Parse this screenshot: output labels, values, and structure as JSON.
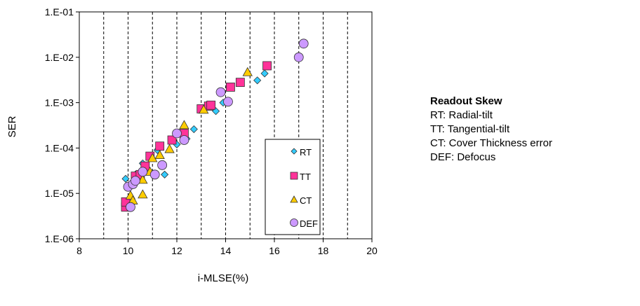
{
  "chart_data": {
    "type": "scatter",
    "xlabel": "i-MLSE(%)",
    "ylabel": "SER",
    "xlim": [
      8,
      20
    ],
    "ylim": [
      1e-06,
      0.1
    ],
    "y_scale": "log",
    "x_ticks": [
      "8",
      "10",
      "12",
      "14",
      "16",
      "18",
      "20"
    ],
    "y_ticks": [
      "1.E-06",
      "1.E-05",
      "1.E-04",
      "1.E-03",
      "1.E-02",
      "1.E-01"
    ],
    "grid": "vertical dashed",
    "legend_position": "bottom-right inside",
    "series": [
      {
        "name": "RT",
        "marker": "diamond",
        "color": "#33CCFF",
        "points": [
          [
            9.9,
            2.1e-05
          ],
          [
            10.3,
            2.6e-05
          ],
          [
            10.6,
            4.6e-05
          ],
          [
            10.9,
            6.3e-05
          ],
          [
            11.2,
            9e-05
          ],
          [
            11.5,
            2.6e-05
          ],
          [
            12.0,
            0.00012
          ],
          [
            12.4,
            0.00016
          ],
          [
            12.7,
            0.00026
          ],
          [
            13.6,
            0.00065
          ],
          [
            13.9,
            0.001
          ],
          [
            15.3,
            0.0031
          ],
          [
            15.6,
            0.0044
          ]
        ]
      },
      {
        "name": "TT",
        "marker": "square",
        "color": "#FF3399",
        "points": [
          [
            9.9,
            5e-06
          ],
          [
            9.9,
            6.5e-06
          ],
          [
            10.3,
            2.4e-05
          ],
          [
            10.5,
            2.6e-05
          ],
          [
            10.7,
            4e-05
          ],
          [
            10.9,
            6.6e-05
          ],
          [
            11.3,
            0.00011
          ],
          [
            11.8,
            0.00015
          ],
          [
            12.3,
            0.00021
          ],
          [
            13.0,
            0.00073
          ],
          [
            13.3,
            0.00084
          ],
          [
            13.4,
            0.00088
          ],
          [
            14.2,
            0.0022
          ],
          [
            14.6,
            0.0028
          ],
          [
            15.7,
            0.0065
          ]
        ]
      },
      {
        "name": "CT",
        "marker": "triangle",
        "color": "#FFCC00",
        "points": [
          [
            10.1,
            9e-06
          ],
          [
            10.2,
            7e-06
          ],
          [
            10.6,
            9.5e-06
          ],
          [
            10.6,
            2e-05
          ],
          [
            10.9,
            3e-05
          ],
          [
            11.0,
            6e-05
          ],
          [
            11.3,
            7e-05
          ],
          [
            11.7,
            9.5e-05
          ],
          [
            12.3,
            0.00032
          ],
          [
            13.1,
            0.0007
          ],
          [
            14.9,
            0.0047
          ]
        ]
      },
      {
        "name": "DEF",
        "marker": "circle",
        "color": "#CC99FF",
        "points": [
          [
            10.0,
            1.4e-05
          ],
          [
            10.1,
            5e-06
          ],
          [
            10.2,
            1.6e-05
          ],
          [
            10.3,
            1.9e-05
          ],
          [
            10.6,
            3e-05
          ],
          [
            11.1,
            2.6e-05
          ],
          [
            11.4,
            4.2e-05
          ],
          [
            12.0,
            0.00021
          ],
          [
            12.3,
            0.00015
          ],
          [
            13.8,
            0.0017
          ],
          [
            14.1,
            0.00105
          ],
          [
            17.0,
            0.01
          ],
          [
            17.2,
            0.02
          ]
        ]
      }
    ]
  },
  "note": {
    "title": "Readout Skew",
    "lines": [
      "RT: Radial-tilt",
      "TT: Tangential-tilt",
      "CT: Cover Thickness error",
      "DEF: Defocus"
    ]
  }
}
